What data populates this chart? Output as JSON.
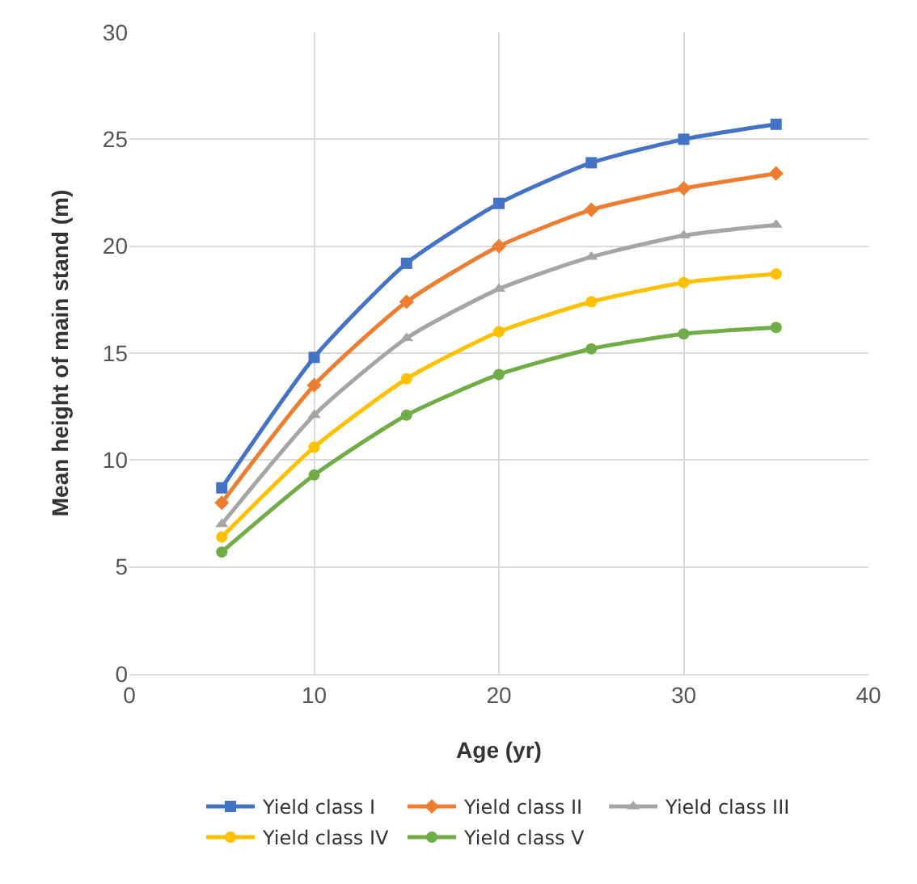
{
  "chart_data": {
    "type": "line",
    "xlabel": "Age (yr)",
    "ylabel": "Mean height of main stand (m)",
    "x": [
      5,
      10,
      15,
      20,
      25,
      30,
      35
    ],
    "series": [
      {
        "name": "Yield class I",
        "color": "#4472c4",
        "marker": "square",
        "values": [
          8.7,
          14.8,
          19.2,
          22,
          23.9,
          25,
          25.7
        ]
      },
      {
        "name": "Yield class II",
        "color": "#ed7d31",
        "marker": "diamond",
        "values": [
          8,
          13.5,
          17.4,
          20,
          21.7,
          22.7,
          23.4
        ]
      },
      {
        "name": "Yield class III",
        "color": "#a5a5a5",
        "marker": "triangle",
        "values": [
          7,
          12.1,
          15.7,
          18,
          19.5,
          20.5,
          21
        ]
      },
      {
        "name": "Yield class IV",
        "color": "#ffc000",
        "marker": "circle",
        "values": [
          6.4,
          10.6,
          13.8,
          16,
          17.4,
          18.3,
          18.7
        ]
      },
      {
        "name": "Yield class V",
        "color": "#70ad47",
        "marker": "circle",
        "values": [
          5.7,
          9.3,
          12.1,
          14,
          15.2,
          15.9,
          16.2
        ]
      }
    ],
    "xlim": [
      0,
      40
    ],
    "xticks": [
      0,
      10,
      20,
      30,
      40
    ],
    "ylim": [
      0,
      30
    ],
    "yticks": [
      0,
      5,
      10,
      15,
      20,
      25,
      30
    ],
    "grid": true,
    "legend": "bottom",
    "line_style": "solid"
  }
}
